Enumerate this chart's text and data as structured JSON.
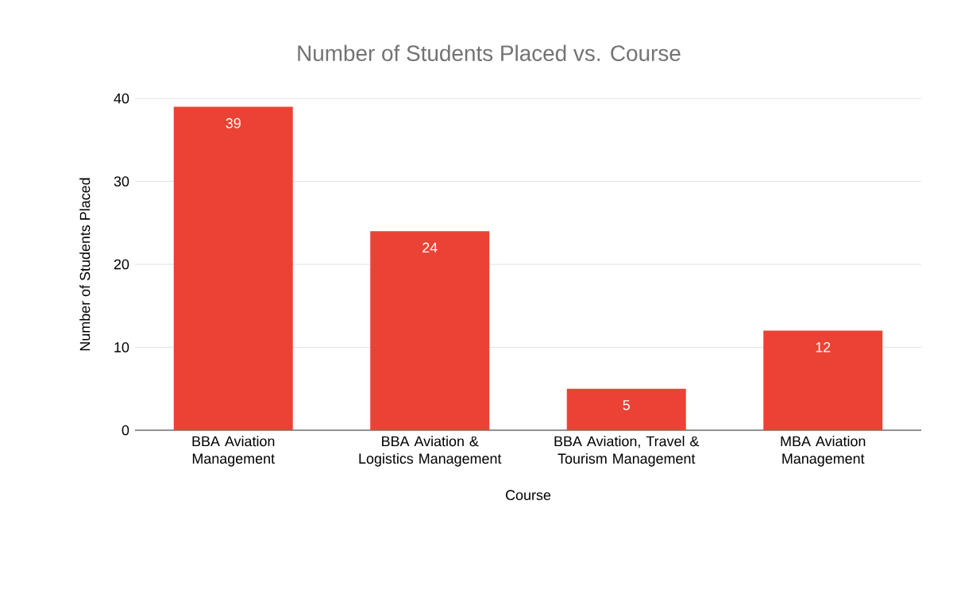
{
  "chart_data": {
    "type": "bar",
    "title": "Number of Students Placed vs. Course",
    "xlabel": "Course",
    "ylabel": "Number of Students Placed",
    "categories": [
      "BBA Aviation Management",
      "BBA Aviation & Logistics Management",
      "BBA Aviation, Travel & Tourism Management",
      "MBA Aviation Management"
    ],
    "values": [
      39,
      24,
      5,
      12
    ],
    "color": "#ea4335",
    "ylim": [
      0,
      40
    ],
    "yticks": [
      0,
      10,
      20,
      30,
      40
    ],
    "grid": "y",
    "data_labels": true
  }
}
